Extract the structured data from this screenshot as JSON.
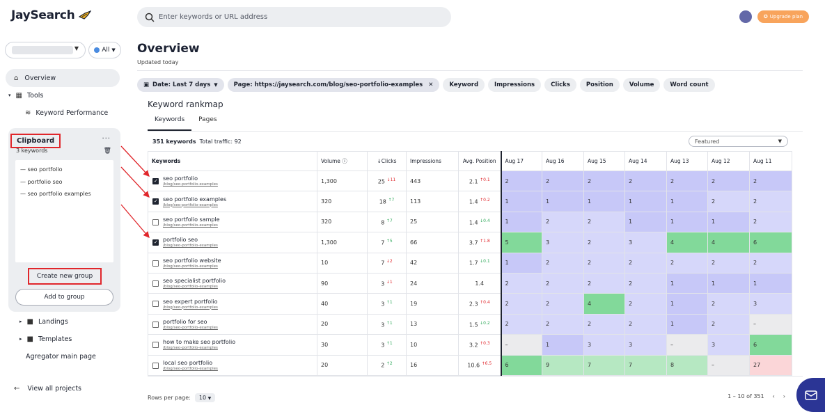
{
  "app": {
    "logo_text": "JaySearch",
    "all_label": "All",
    "search_placeholder": "Enter keywords or URL address",
    "upgrade_label": "Upgrade plan"
  },
  "sidebar": {
    "overview": "Overview",
    "tools": "Tools",
    "keyword_performance": "Keyword Performance",
    "landings": "Landings",
    "templates": "Templates",
    "aggregator": "Agregator main page",
    "view_all": "View all projects"
  },
  "clipboard": {
    "title": "Clipboard",
    "count": "3 keywords",
    "items": [
      "seo portfolio",
      "portfolio seo",
      "seo portfolio examples"
    ],
    "create_group": "Create new group",
    "add_to_group": "Add to group"
  },
  "header": {
    "title": "Overview",
    "subtitle": "Updated today"
  },
  "filters": {
    "date": "Date: Last 7 days",
    "page": "Page: https://jaysearch.com/blog/seo-portfolio-examples",
    "keyword": "Keyword",
    "impressions": "Impressions",
    "clicks": "Clicks",
    "position": "Position",
    "volume": "Volume",
    "word_count": "Word count"
  },
  "rankmap": {
    "title": "Keyword rankmap",
    "tab_keywords": "Keywords",
    "tab_pages": "Pages",
    "total_keywords": "351 keywords",
    "total_traffic": "Total traffic: 92",
    "sort": "Featured",
    "columns": [
      "Keywords",
      "Volume",
      "Clicks",
      "Impressions",
      "Avg. Position",
      "Aug 17",
      "Aug 16",
      "Aug 15",
      "Aug 14",
      "Aug 13",
      "Aug 12",
      "Aug 11"
    ],
    "rows": [
      {
        "kw": "seo portfolio",
        "url": "/blog/seo-portfolio-examples",
        "checked": true,
        "volume": "1,300",
        "clicks": "25",
        "clicks_delta": "11",
        "clicks_dir": "down",
        "impressions": "443",
        "pos": "2.1",
        "pos_delta": "0.1",
        "pos_dir": "up_red",
        "days": [
          "2",
          "2",
          "2",
          "2",
          "2",
          "2",
          "2"
        ],
        "colors": [
          "c-blue2",
          "c-blue2",
          "c-blue2",
          "c-blue2",
          "c-blue2",
          "c-blue2",
          "c-blue2"
        ]
      },
      {
        "kw": "seo portfolio examples",
        "url": "/blog/seo-portfolio-examples",
        "checked": true,
        "volume": "320",
        "clicks": "18",
        "clicks_delta": "7",
        "clicks_dir": "up",
        "impressions": "113",
        "pos": "1.4",
        "pos_delta": "0.2",
        "pos_dir": "up_red",
        "days": [
          "1",
          "1",
          "1",
          "1",
          "1",
          "2",
          "2"
        ],
        "colors": [
          "c-blue2",
          "c-blue2",
          "c-blue2",
          "c-blue2",
          "c-blue2",
          "c-blue",
          "c-blue"
        ]
      },
      {
        "kw": "seo portfolio sample",
        "url": "/blog/seo-portfolio-examples",
        "checked": false,
        "volume": "320",
        "clicks": "8",
        "clicks_delta": "7",
        "clicks_dir": "up",
        "impressions": "25",
        "pos": "1.4",
        "pos_delta": "0.4",
        "pos_dir": "down_green",
        "days": [
          "1",
          "2",
          "2",
          "1",
          "1",
          "1",
          "2"
        ],
        "colors": [
          "c-blue2",
          "c-blue",
          "c-blue",
          "c-blue2",
          "c-blue2",
          "c-blue2",
          "c-blue"
        ]
      },
      {
        "kw": "portfolio seo",
        "url": "/blog/seo-portfolio-examples",
        "checked": true,
        "volume": "1,300",
        "clicks": "7",
        "clicks_delta": "5",
        "clicks_dir": "up",
        "impressions": "66",
        "pos": "3.7",
        "pos_delta": "1.8",
        "pos_dir": "up_red",
        "days": [
          "5",
          "3",
          "2",
          "3",
          "4",
          "4",
          "6"
        ],
        "colors": [
          "c-green",
          "c-blue",
          "c-blue",
          "c-blue",
          "c-green",
          "c-green",
          "c-green"
        ]
      },
      {
        "kw": "seo portfolio website",
        "url": "/blog/seo-portfolio-examples",
        "checked": false,
        "volume": "10",
        "clicks": "7",
        "clicks_delta": "2",
        "clicks_dir": "down",
        "impressions": "42",
        "pos": "1.7",
        "pos_delta": "0.1",
        "pos_dir": "down_green",
        "days": [
          "1",
          "2",
          "2",
          "2",
          "2",
          "2",
          "2"
        ],
        "colors": [
          "c-blue2",
          "c-blue",
          "c-blue",
          "c-blue",
          "c-blue",
          "c-blue",
          "c-blue"
        ]
      },
      {
        "kw": "seo specialist portfolio",
        "url": "/blog/seo-portfolio-examples",
        "checked": false,
        "volume": "90",
        "clicks": "3",
        "clicks_delta": "1",
        "clicks_dir": "down",
        "impressions": "24",
        "pos": "1.4",
        "pos_delta": "",
        "pos_dir": "",
        "days": [
          "2",
          "2",
          "2",
          "2",
          "1",
          "1",
          "1"
        ],
        "colors": [
          "c-blue",
          "c-blue",
          "c-blue",
          "c-blue",
          "c-blue2",
          "c-blue2",
          "c-blue2"
        ]
      },
      {
        "kw": "seo expert portfolio",
        "url": "/blog/seo-portfolio-examples",
        "checked": false,
        "volume": "40",
        "clicks": "3",
        "clicks_delta": "1",
        "clicks_dir": "up",
        "impressions": "19",
        "pos": "2.3",
        "pos_delta": "0.4",
        "pos_dir": "up_red",
        "days": [
          "2",
          "2",
          "4",
          "2",
          "1",
          "2",
          "3"
        ],
        "colors": [
          "c-blue",
          "c-blue",
          "c-green",
          "c-blue",
          "c-blue2",
          "c-blue",
          "c-blue"
        ]
      },
      {
        "kw": "portfolio for seo",
        "url": "/blog/seo-portfolio-examples",
        "checked": false,
        "volume": "20",
        "clicks": "3",
        "clicks_delta": "1",
        "clicks_dir": "up",
        "impressions": "13",
        "pos": "1.5",
        "pos_delta": "0.2",
        "pos_dir": "down_green",
        "days": [
          "2",
          "2",
          "2",
          "2",
          "1",
          "2",
          "–"
        ],
        "colors": [
          "c-blue",
          "c-blue",
          "c-blue",
          "c-blue",
          "c-blue2",
          "c-blue",
          "c-grey"
        ]
      },
      {
        "kw": "how to make seo portfolio",
        "url": "/blog/seo-portfolio-examples",
        "checked": false,
        "volume": "30",
        "clicks": "3",
        "clicks_delta": "1",
        "clicks_dir": "up",
        "impressions": "10",
        "pos": "3.2",
        "pos_delta": "0.3",
        "pos_dir": "up_red",
        "days": [
          "–",
          "1",
          "3",
          "3",
          "–",
          "3",
          "6"
        ],
        "colors": [
          "c-grey",
          "c-blue2",
          "c-blue",
          "c-blue",
          "c-grey",
          "c-blue",
          "c-green"
        ]
      },
      {
        "kw": "local seo portfolio",
        "url": "/blog/seo-portfolio-examples",
        "checked": false,
        "volume": "20",
        "clicks": "2",
        "clicks_delta": "2",
        "clicks_dir": "up",
        "impressions": "16",
        "pos": "10.6",
        "pos_delta": "6.5",
        "pos_dir": "up_red",
        "days": [
          "6",
          "9",
          "7",
          "7",
          "8",
          "–",
          "27"
        ],
        "colors": [
          "c-green",
          "c-lgreen",
          "c-lgreen",
          "c-lgreen",
          "c-lgreen",
          "c-grey",
          "c-pink"
        ]
      }
    ],
    "rows_per_page_label": "Rows per page:",
    "rows_per_page": "10",
    "pagination": "1 – 10 of 351"
  }
}
